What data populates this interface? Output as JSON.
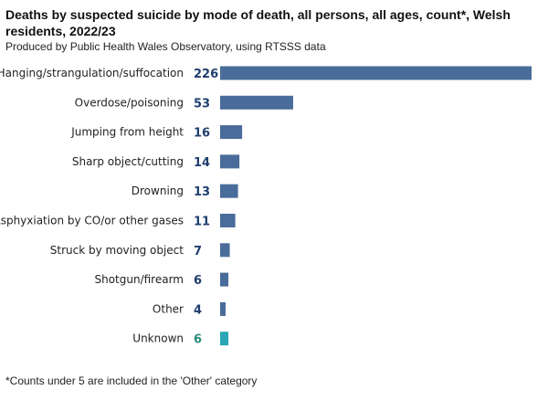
{
  "header": {
    "title": "Deaths by suspected suicide by mode of death, all persons, all ages, count*, Welsh residents, 2022/23",
    "subtitle": "Produced by Public Health Wales Observatory, using RTSSS data"
  },
  "footnote": "*Counts under 5 are included in the 'Other' category",
  "chart_data": {
    "type": "bar",
    "orientation": "horizontal",
    "categories": [
      "Hanging/strangulation/suffocation",
      "Overdose/poisoning",
      "Jumping from height",
      "Sharp object/cutting",
      "Drowning",
      "Asphyxiation by CO/or other gases",
      "Struck by moving object",
      "Shotgun/firearm",
      "Other",
      "Unknown"
    ],
    "values": [
      226,
      53,
      16,
      14,
      13,
      11,
      7,
      6,
      4,
      6
    ],
    "data_labels": [
      "226",
      "53",
      "16",
      "14",
      "13",
      "11",
      "7",
      "6",
      "4",
      "6"
    ],
    "bar_colors": [
      "#4a6c9b",
      "#4a6c9b",
      "#4a6c9b",
      "#4a6c9b",
      "#4a6c9b",
      "#4a6c9b",
      "#4a6c9b",
      "#4a6c9b",
      "#4a6c9b",
      "#2aa6b4"
    ],
    "label_colors": [
      "#1f3e6e",
      "#1f3e6e",
      "#1f3e6e",
      "#1f3e6e",
      "#1f3e6e",
      "#1f3e6e",
      "#1f3e6e",
      "#1f3e6e",
      "#1f3e6e",
      "#2a8a7a"
    ],
    "xlim": [
      0,
      226
    ],
    "grid": false,
    "legend": "none"
  }
}
